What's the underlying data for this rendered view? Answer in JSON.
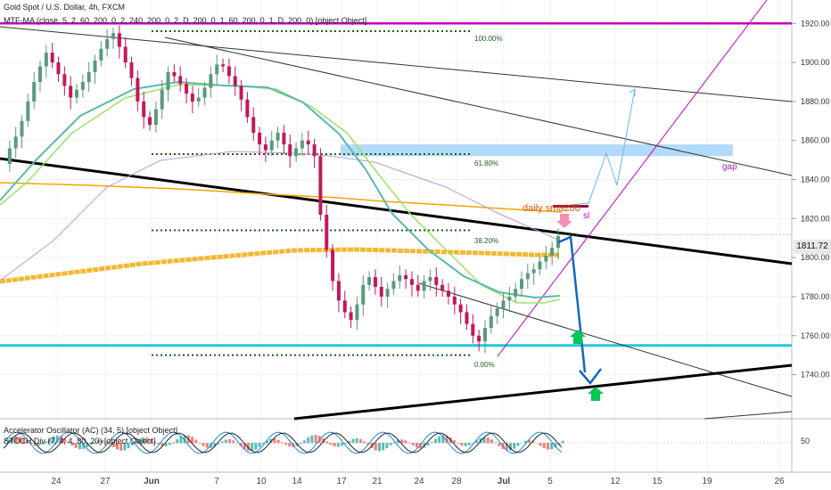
{
  "header": {
    "title": "Gold Spot / U.S. Dollar, 4h, FXCM",
    "indicator": "MTF-MA (close, 5, 2, 60, 200, 0, 2, 240, 200, 0, 2, D, 200, 0, 1, 60, 200, 0, 1, D, 200, 0) [object Object]"
  },
  "subpane": {
    "indicator1": "Accelerator Oscillator (AC) (34, 5) [object Object]",
    "indicator2": "STOCH Div (7, 4, 4, 80, 20) [object Object]",
    "level_label": "50"
  },
  "price_axis": {
    "labels": [
      "1920.00",
      "1900.00",
      "1880.00",
      "1860.00",
      "1840.00",
      "1820.00",
      "1800.00",
      "1780.00",
      "1760.00",
      "1740.00"
    ],
    "current_price": "1811.72"
  },
  "time_axis": {
    "labels": [
      "24",
      "27",
      "Jun",
      "7",
      "10",
      "14",
      "17",
      "21",
      "24",
      "28",
      "Jul",
      "5",
      "12",
      "15",
      "19",
      "26"
    ]
  },
  "annotations": {
    "fib_100": "100.00%",
    "fib_618": "61.80%",
    "fib_382": "38.20%",
    "fib_0": "0.00%",
    "daily_sma": "daily sma200",
    "sl": "sl",
    "gap": "gap"
  },
  "colors": {
    "up_candle": "#5a9a7a",
    "down_candle": "#c2185b",
    "sma_daily": "#f5b731",
    "ma_teal": "#5ab8b0",
    "ma_green": "#9be36a",
    "purple_line": "#c000c0",
    "cyan_line": "#26c6da",
    "forecast_blue": "#1565c0",
    "zone_blue": "#90caf9",
    "dotted_green": "#1b5e20"
  },
  "chart_data": {
    "type": "candlestick",
    "symbol": "XAUUSD",
    "timeframe": "4h",
    "ylim": [
      1722,
      1932
    ],
    "current_price": 1811.72,
    "fib_levels": [
      {
        "label": "100.00%",
        "price": 1916
      },
      {
        "label": "61.80%",
        "price": 1853
      },
      {
        "label": "38.20%",
        "price": 1814
      },
      {
        "label": "0.00%",
        "price": 1750
      }
    ],
    "horizontal_lines": [
      {
        "name": "resistance",
        "price": 1920
      },
      {
        "name": "support",
        "price": 1755
      }
    ],
    "trend_segments_note": "key trend lines drawn across chart",
    "close_path": [
      1848,
      1856,
      1862,
      1870,
      1880,
      1890,
      1898,
      1905,
      1900,
      1894,
      1888,
      1882,
      1886,
      1890,
      1895,
      1901,
      1907,
      1912,
      1915,
      1908,
      1900,
      1892,
      1880,
      1872,
      1868,
      1876,
      1886,
      1895,
      1893,
      1889,
      1884,
      1880,
      1882,
      1887,
      1894,
      1899,
      1898,
      1893,
      1888,
      1881,
      1872,
      1864,
      1858,
      1855,
      1860,
      1864,
      1858,
      1852,
      1856,
      1860,
      1858,
      1852,
      1822,
      1804,
      1788,
      1778,
      1772,
      1768,
      1776,
      1786,
      1790,
      1785,
      1780,
      1784,
      1788,
      1791,
      1789,
      1786,
      1783,
      1788,
      1790,
      1786,
      1783,
      1780,
      1776,
      1772,
      1766,
      1760,
      1757,
      1764,
      1770,
      1774,
      1778,
      1780,
      1784,
      1789,
      1792,
      1794,
      1798,
      1801,
      1805,
      1811
    ],
    "forecast_down": [
      1814,
      1740
    ],
    "forecast_up": [
      1832,
      1890
    ]
  }
}
